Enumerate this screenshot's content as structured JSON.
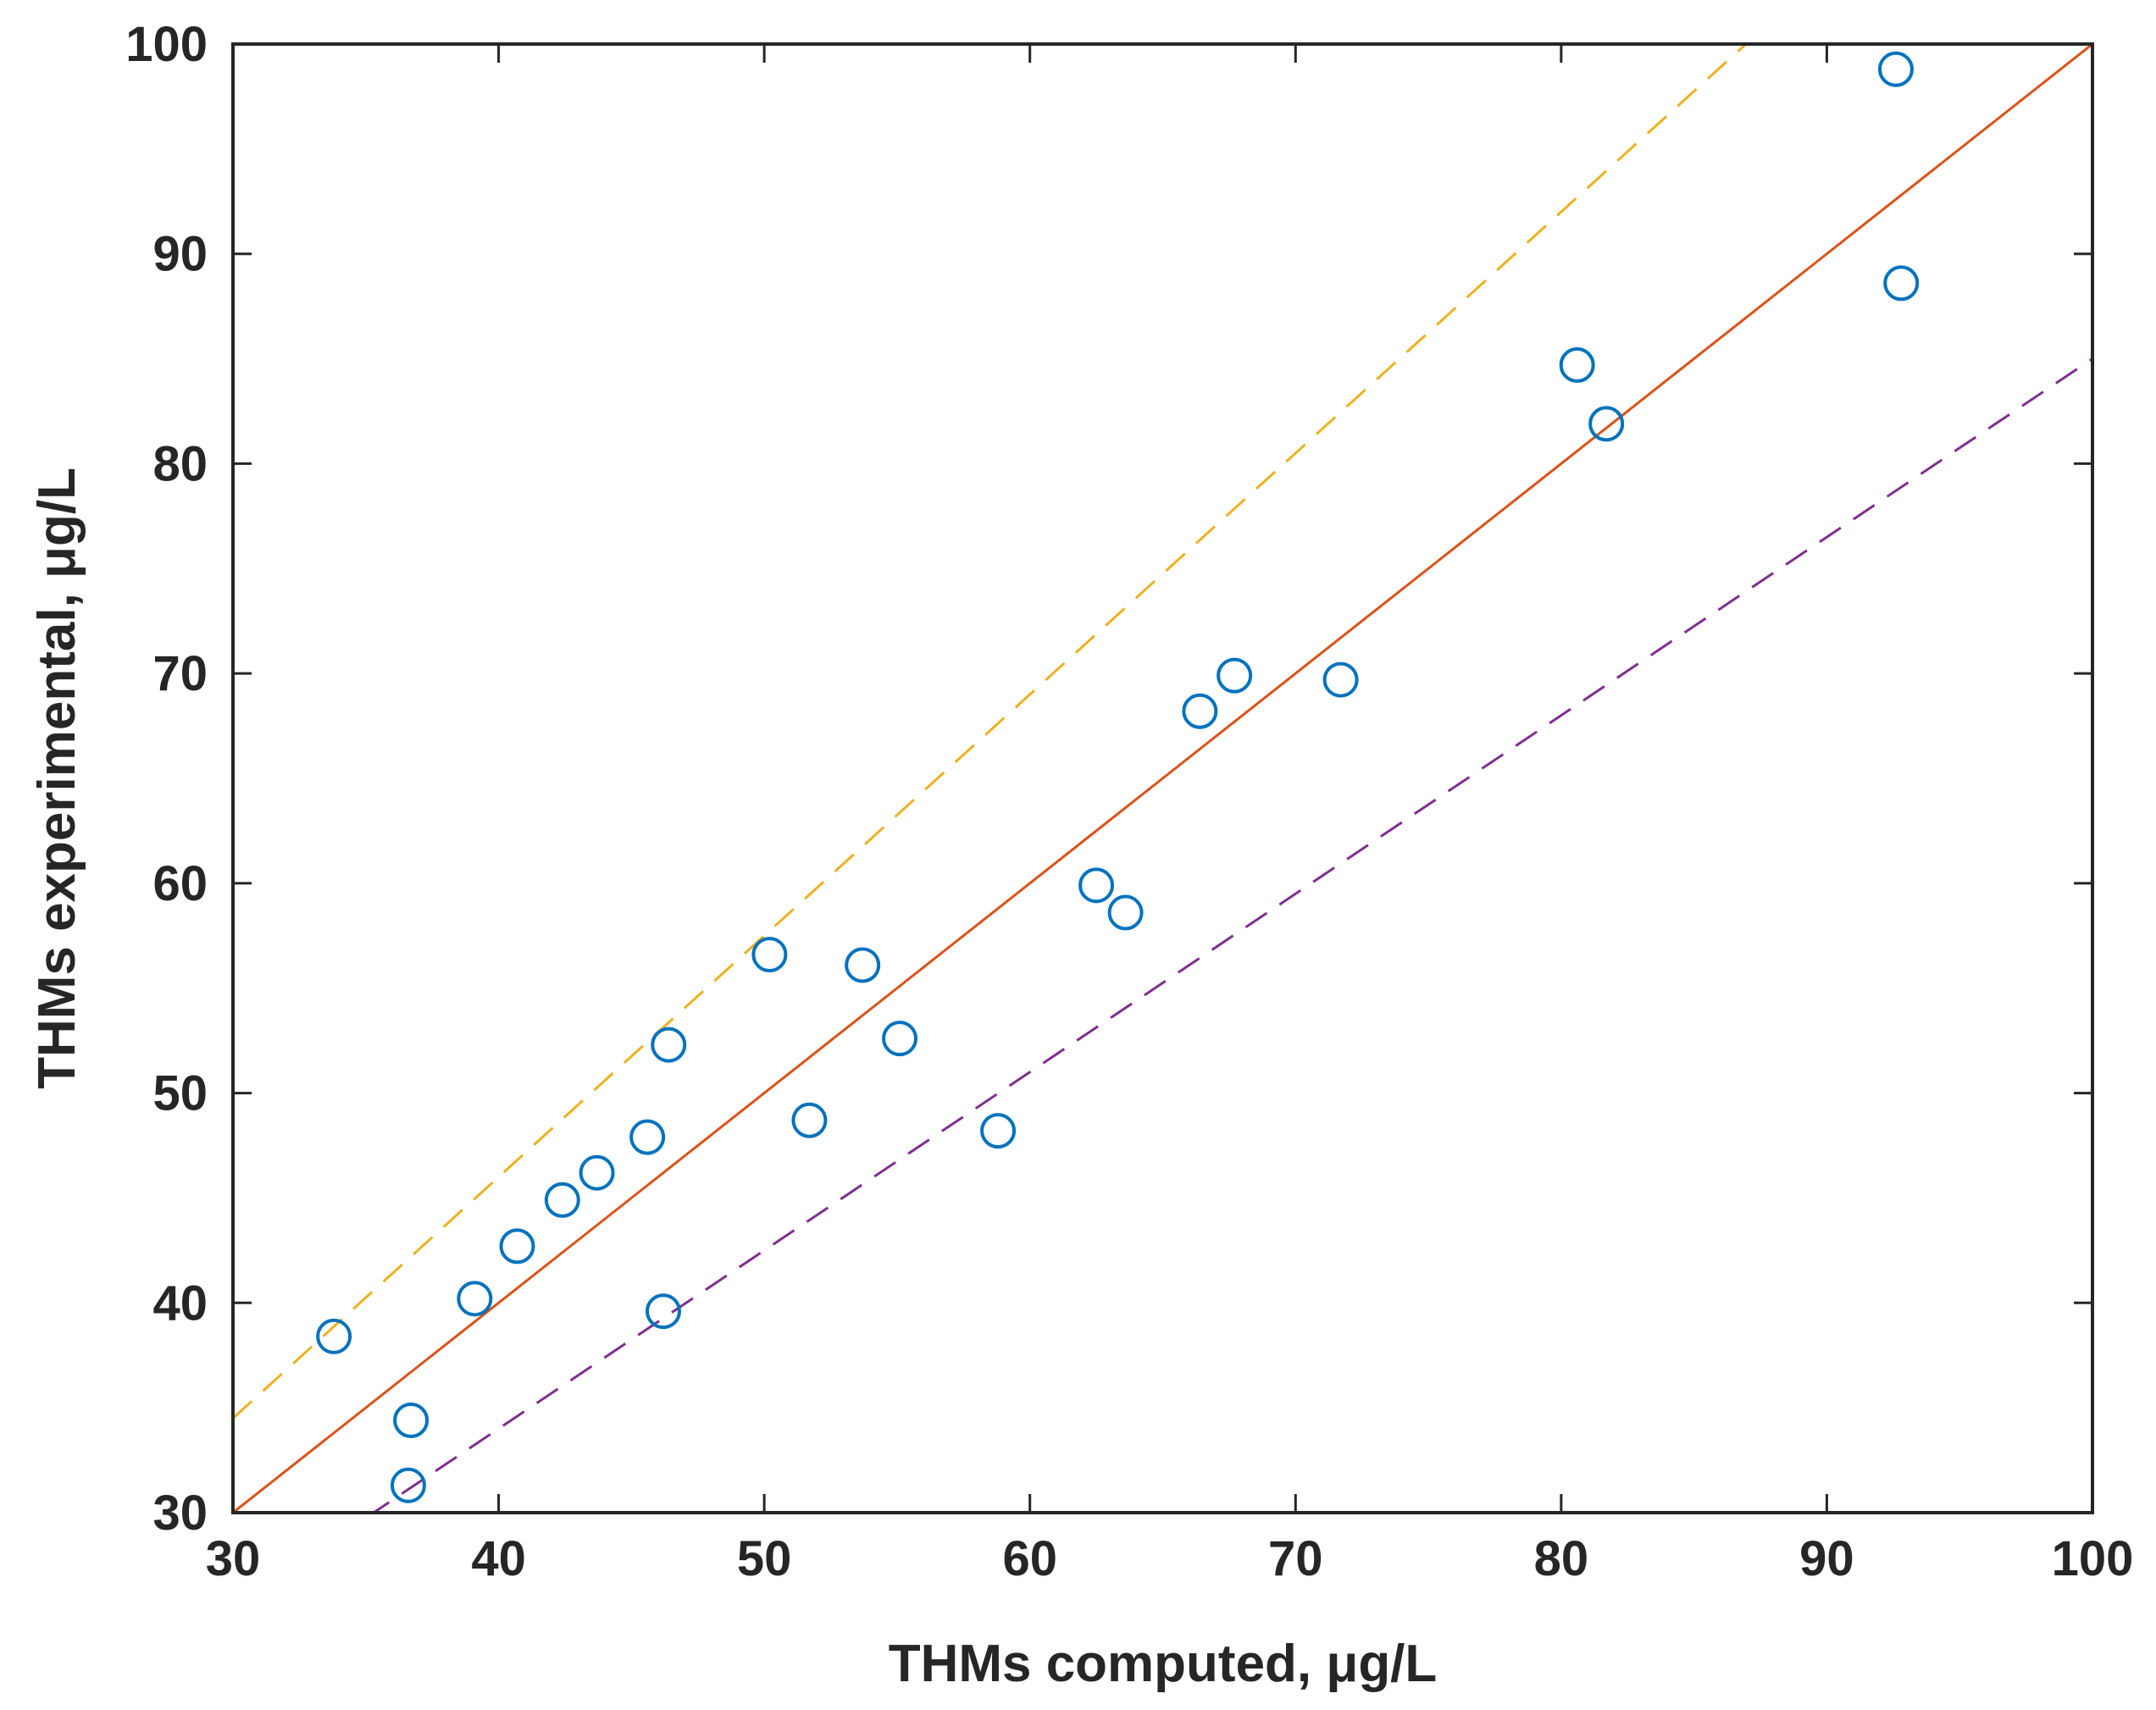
{
  "chart_data": {
    "type": "scatter",
    "title": "",
    "xlabel": "THMs computed, μg/L",
    "ylabel": "THMs experimental, μg/L",
    "xlim": [
      30,
      100
    ],
    "ylim": [
      30,
      100
    ],
    "xticks": [
      30,
      40,
      50,
      60,
      70,
      80,
      90,
      100
    ],
    "yticks": [
      30,
      40,
      50,
      60,
      70,
      80,
      90,
      100
    ],
    "grid": false,
    "series": [
      {
        "marker": "circle-open",
        "color": "#0072BD",
        "x": [
          33.8,
          36.7,
          36.6,
          39.1,
          40.7,
          42.4,
          43.7,
          45.6,
          46.4,
          46.2,
          50.2,
          51.7,
          53.7,
          55.1,
          58.8,
          62.5,
          63.6,
          66.4,
          67.7,
          71.7,
          80.6,
          81.7,
          92.6,
          92.8
        ],
        "y": [
          38.4,
          34.4,
          31.3,
          40.2,
          42.7,
          44.9,
          46.2,
          47.9,
          52.3,
          39.6,
          56.6,
          48.7,
          56.1,
          52.6,
          48.2,
          59.9,
          58.6,
          68.2,
          69.9,
          69.7,
          84.7,
          81.9,
          98.8,
          88.6
        ]
      }
    ],
    "lines": [
      {
        "style": "solid",
        "color": "#D95319",
        "slope": 1.0,
        "intercept": 0
      },
      {
        "style": "dashed",
        "color": "#EDB120",
        "slope": 1.15,
        "intercept": 0
      },
      {
        "style": "dashed",
        "color": "#7E2F8E",
        "slope": 0.85,
        "intercept": 0
      }
    ]
  }
}
